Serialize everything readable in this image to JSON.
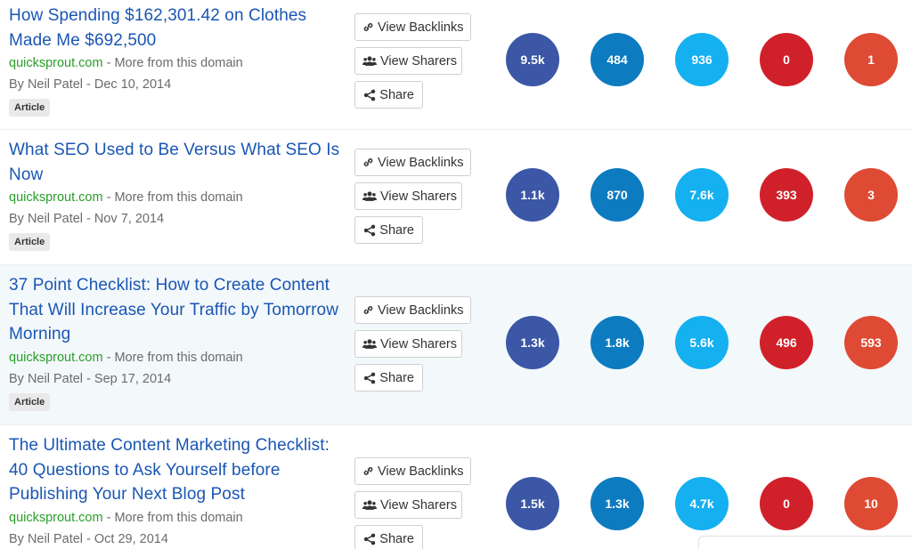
{
  "buttons": {
    "view_backlinks": "View Backlinks",
    "view_sharers": "View Sharers",
    "share": "Share"
  },
  "icons": {
    "backlinks": "link-icon",
    "sharers": "users-icon",
    "share": "share-icon"
  },
  "colors": {
    "facebook": "#3b57a6",
    "linkedin": "#0d7bbf",
    "twitter": "#15b0f0",
    "pinterest": "#d0212a",
    "googleplus": "#de4a33",
    "title_link": "#1a56b4",
    "domain_link": "#2a9d2a"
  },
  "articles": [
    {
      "title": "How Spending $162,301.42 on Clothes Made Me $692,500",
      "domain": "quicksprout.com",
      "more": " - More from this domain",
      "author": "By Neil Patel",
      "date": " - Dec 10, 2014",
      "tag": "Article",
      "counts": [
        "9.5k",
        "484",
        "936",
        "0",
        "1"
      ]
    },
    {
      "title": "What SEO Used to Be Versus What SEO Is Now",
      "domain": "quicksprout.com",
      "more": " - More from this domain",
      "author": "By Neil Patel",
      "date": " - Nov 7, 2014",
      "tag": "Article",
      "counts": [
        "1.1k",
        "870",
        "7.6k",
        "393",
        "3"
      ]
    },
    {
      "title": "37 Point Checklist: How to Create Content That Will Increase Your Traffic by Tomorrow Morning",
      "domain": "quicksprout.com",
      "more": " - More from this domain",
      "author": "By Neil Patel",
      "date": " - Sep 17, 2014",
      "tag": "Article",
      "counts": [
        "1.3k",
        "1.8k",
        "5.6k",
        "496",
        "593"
      ]
    },
    {
      "title": "The Ultimate Content Marketing Checklist: 40 Questions to Ask Yourself before Publishing Your Next Blog Post",
      "domain": "quicksprout.com",
      "more": " - More from this domain",
      "author": "By Neil Patel",
      "date": " - Oct 29, 2014",
      "tag": "",
      "counts": [
        "1.5k",
        "1.3k",
        "4.7k",
        "0",
        "10"
      ]
    }
  ]
}
